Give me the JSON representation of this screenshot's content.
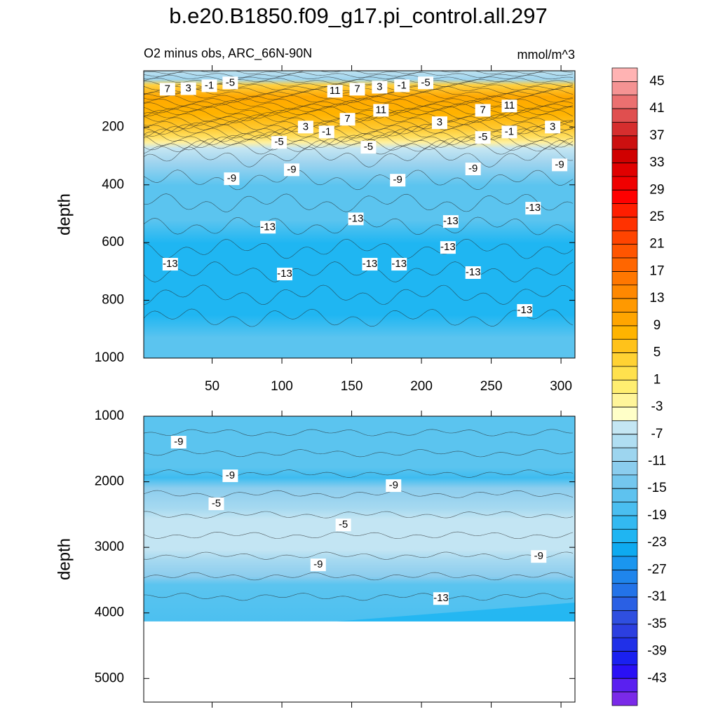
{
  "chart_data": {
    "type": "contour",
    "title": "b.e20.B1850.f09_g17.pi_control.all.297",
    "subtitle": "O2 minus obs, ARC_66N-90N",
    "units": "mmol/m^3",
    "panels": [
      {
        "ylabel": "depth",
        "xlim": [
          1,
          310
        ],
        "xticks": [
          50,
          100,
          150,
          200,
          250,
          300
        ],
        "show_xtick_labels": true,
        "ylim": [
          5,
          1000
        ],
        "yticks": [
          200,
          400,
          600,
          800,
          1000
        ],
        "contour_labels": [
          {
            "value": 7,
            "x": 18,
            "depth": 69
          },
          {
            "value": 3,
            "x": 33,
            "depth": 67
          },
          {
            "value": -1,
            "x": 48,
            "depth": 57
          },
          {
            "value": -5,
            "x": 63,
            "depth": 47
          },
          {
            "value": 11,
            "x": 138,
            "depth": 76
          },
          {
            "value": 7,
            "x": 154,
            "depth": 69
          },
          {
            "value": 3,
            "x": 170,
            "depth": 62
          },
          {
            "value": -1,
            "x": 186,
            "depth": 57
          },
          {
            "value": -5,
            "x": 203,
            "depth": 47
          },
          {
            "value": 11,
            "x": 171,
            "depth": 142
          },
          {
            "value": 7,
            "x": 147,
            "depth": 173
          },
          {
            "value": 3,
            "x": 117,
            "depth": 200
          },
          {
            "value": -1,
            "x": 132,
            "depth": 217
          },
          {
            "value": 7,
            "x": 244,
            "depth": 142
          },
          {
            "value": 11,
            "x": 263,
            "depth": 127
          },
          {
            "value": 3,
            "x": 213,
            "depth": 185
          },
          {
            "value": -5,
            "x": 244,
            "depth": 236
          },
          {
            "value": -1,
            "x": 263,
            "depth": 217
          },
          {
            "value": 3,
            "x": 294,
            "depth": 200
          },
          {
            "value": -5,
            "x": 98,
            "depth": 253
          },
          {
            "value": -5,
            "x": 162,
            "depth": 270
          },
          {
            "value": -9,
            "x": 107,
            "depth": 348
          },
          {
            "value": -9,
            "x": 64,
            "depth": 379
          },
          {
            "value": -9,
            "x": 183,
            "depth": 384
          },
          {
            "value": -9,
            "x": 237,
            "depth": 345
          },
          {
            "value": -9,
            "x": 299,
            "depth": 331
          },
          {
            "value": -13,
            "x": 280,
            "depth": 481
          },
          {
            "value": -13,
            "x": 90,
            "depth": 547
          },
          {
            "value": -13,
            "x": 153,
            "depth": 518
          },
          {
            "value": -13,
            "x": 221,
            "depth": 527
          },
          {
            "value": -13,
            "x": 219,
            "depth": 617
          },
          {
            "value": -13,
            "x": 20,
            "depth": 675
          },
          {
            "value": -13,
            "x": 163,
            "depth": 675
          },
          {
            "value": -13,
            "x": 184,
            "depth": 675
          },
          {
            "value": -13,
            "x": 102,
            "depth": 709
          },
          {
            "value": -13,
            "x": 237,
            "depth": 704
          },
          {
            "value": -13,
            "x": 274,
            "depth": 835
          }
        ]
      },
      {
        "ylabel": "depth",
        "xlim": [
          1,
          310
        ],
        "xticks": [
          50,
          100,
          150,
          200,
          250,
          300
        ],
        "show_xtick_labels": false,
        "ylim": [
          1000,
          5360
        ],
        "yticks": [
          1000,
          2000,
          3000,
          4000,
          5000
        ],
        "data_bottom": 4130,
        "contour_labels": [
          {
            "value": -9,
            "x": 26,
            "depth": 1396
          },
          {
            "value": -9,
            "x": 63,
            "depth": 1909
          },
          {
            "value": -9,
            "x": 180,
            "depth": 2059
          },
          {
            "value": -5,
            "x": 53,
            "depth": 2337
          },
          {
            "value": -5,
            "x": 144,
            "depth": 2658
          },
          {
            "value": -9,
            "x": 126,
            "depth": 3267
          },
          {
            "value": -9,
            "x": 284,
            "depth": 3139
          },
          {
            "value": -13,
            "x": 214,
            "depth": 3781
          }
        ]
      }
    ],
    "colorbar": {
      "ticks": [
        45,
        41,
        37,
        33,
        29,
        25,
        21,
        17,
        13,
        9,
        5,
        1,
        -3,
        -7,
        -11,
        -15,
        -19,
        -23,
        -27,
        -31,
        -35,
        -39,
        -43
      ],
      "colors": [
        "#ffb3b3",
        "#f59393",
        "#eb7070",
        "#e04f4f",
        "#d62e2e",
        "#cc1010",
        "#d00000",
        "#e00000",
        "#f00000",
        "#ff0000",
        "#ff1e00",
        "#ff3200",
        "#ff4400",
        "#ff5500",
        "#ff6600",
        "#ff7700",
        "#ff8800",
        "#ff9900",
        "#ffa500",
        "#ffb400",
        "#ffc21a",
        "#ffd233",
        "#ffe14d",
        "#ffee70",
        "#fff59a",
        "#ffffc8",
        "#c4e6f3",
        "#b0def2",
        "#9dd5ef",
        "#8bcdee",
        "#74c7ee",
        "#5ec2ef",
        "#4abef0",
        "#33b9f1",
        "#1fb5f2",
        "#0eaaf0",
        "#1a96ef",
        "#1f85ec",
        "#2373e8",
        "#2a60e4",
        "#2f4fe0",
        "#2c3fe0",
        "#2030e8",
        "#1a20f0",
        "#2a10f5",
        "#5a20f0",
        "#7a2ae8"
      ]
    }
  }
}
